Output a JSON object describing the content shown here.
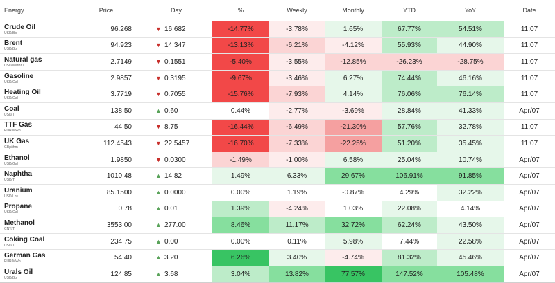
{
  "headers": {
    "name": "Energy",
    "price": "Price",
    "day": "Day",
    "pct": "%",
    "weekly": "Weekly",
    "monthly": "Monthly",
    "ytd": "YTD",
    "yoy": "YoY",
    "date": "Date"
  },
  "colors": {
    "neg_strong": "#f24848",
    "neg_med": "#f5a0a0",
    "neg_light": "#fbd4d4",
    "pos_strong": "#38c463",
    "pos_med": "#86df9e",
    "pos_light": "#bdecc9",
    "up": "#5aa35a",
    "down": "#c8302c"
  },
  "rows": [
    {
      "name": "Crude Oil",
      "unit": "USD/Bbl",
      "price": "96.268",
      "dir": "down",
      "day": "16.682",
      "pct": "-14.77%",
      "weekly": "-3.78%",
      "monthly": "1.65%",
      "ytd": "67.77%",
      "yoy": "54.51%",
      "date": "11:07",
      "cls": [
        "c-neg-strong",
        "c-neg-faint",
        "c-pos-faint",
        "c-pos-light",
        "c-pos-light"
      ]
    },
    {
      "name": "Brent",
      "unit": "USD/Bbl",
      "price": "94.923",
      "dir": "down",
      "day": "14.347",
      "pct": "-13.13%",
      "weekly": "-6.21%",
      "monthly": "-4.12%",
      "ytd": "55.93%",
      "yoy": "44.90%",
      "date": "11:07",
      "cls": [
        "c-neg-strong",
        "c-neg-light",
        "c-neg-faint",
        "c-pos-light",
        "c-pos-faint"
      ]
    },
    {
      "name": "Natural gas",
      "unit": "USD/MMBtu",
      "price": "2.7149",
      "dir": "down",
      "day": "0.1551",
      "pct": "-5.40%",
      "weekly": "-3.55%",
      "monthly": "-12.85%",
      "ytd": "-26.23%",
      "yoy": "-28.75%",
      "date": "11:07",
      "cls": [
        "c-neg-strong",
        "c-neg-faint",
        "c-neg-light",
        "c-neg-light",
        "c-neg-light"
      ]
    },
    {
      "name": "Gasoline",
      "unit": "USD/Gal",
      "price": "2.9857",
      "dir": "down",
      "day": "0.3195",
      "pct": "-9.67%",
      "weekly": "-3.46%",
      "monthly": "6.27%",
      "ytd": "74.44%",
      "yoy": "46.16%",
      "date": "11:07",
      "cls": [
        "c-neg-strong",
        "c-neg-faint",
        "c-pos-faint",
        "c-pos-light",
        "c-pos-faint"
      ]
    },
    {
      "name": "Heating Oil",
      "unit": "USD/Gal",
      "price": "3.7719",
      "dir": "down",
      "day": "0.7055",
      "pct": "-15.76%",
      "weekly": "-7.93%",
      "monthly": "4.14%",
      "ytd": "76.06%",
      "yoy": "76.14%",
      "date": "11:07",
      "cls": [
        "c-neg-strong",
        "c-neg-light",
        "c-pos-faint",
        "c-pos-light",
        "c-pos-light"
      ]
    },
    {
      "name": "Coal",
      "unit": "USD/T",
      "price": "138.50",
      "dir": "up",
      "day": "0.60",
      "pct": "0.44%",
      "weekly": "-2.77%",
      "monthly": "-3.69%",
      "ytd": "28.84%",
      "yoy": "41.33%",
      "date": "Apr/07",
      "cls": [
        "c-neutral",
        "c-neg-faint",
        "c-neg-faint",
        "c-pos-faint",
        "c-pos-faint"
      ]
    },
    {
      "name": "TTF Gas",
      "unit": "EUR/MWh",
      "price": "44.50",
      "dir": "down",
      "day": "8.75",
      "pct": "-16.44%",
      "weekly": "-6.49%",
      "monthly": "-21.30%",
      "ytd": "57.76%",
      "yoy": "32.78%",
      "date": "11:07",
      "cls": [
        "c-neg-strong",
        "c-neg-light",
        "c-neg-med",
        "c-pos-light",
        "c-pos-faint"
      ]
    },
    {
      "name": "UK Gas",
      "unit": "GBp/thm",
      "price": "112.4543",
      "dir": "down",
      "day": "22.5457",
      "pct": "-16.70%",
      "weekly": "-7.33%",
      "monthly": "-22.25%",
      "ytd": "51.20%",
      "yoy": "35.45%",
      "date": "11:07",
      "cls": [
        "c-neg-strong",
        "c-neg-light",
        "c-neg-med",
        "c-pos-light",
        "c-pos-faint"
      ]
    },
    {
      "name": "Ethanol",
      "unit": "USD/Gal",
      "price": "1.9850",
      "dir": "down",
      "day": "0.0300",
      "pct": "-1.49%",
      "weekly": "-1.00%",
      "monthly": "6.58%",
      "ytd": "25.04%",
      "yoy": "10.74%",
      "date": "Apr/07",
      "cls": [
        "c-neg-light",
        "c-neg-faint",
        "c-pos-faint",
        "c-pos-faint",
        "c-pos-faint"
      ]
    },
    {
      "name": "Naphtha",
      "unit": "USD/T",
      "price": "1010.48",
      "dir": "up",
      "day": "14.82",
      "pct": "1.49%",
      "weekly": "6.33%",
      "monthly": "29.67%",
      "ytd": "106.91%",
      "yoy": "91.85%",
      "date": "Apr/07",
      "cls": [
        "c-pos-faint",
        "c-pos-faint",
        "c-pos-med",
        "c-pos-med",
        "c-pos-med"
      ]
    },
    {
      "name": "Uranium",
      "unit": "USD/Lbs",
      "price": "85.1500",
      "dir": "up",
      "day": "0.0000",
      "pct": "0.00%",
      "weekly": "1.19%",
      "monthly": "-0.87%",
      "ytd": "4.29%",
      "yoy": "32.22%",
      "date": "Apr/07",
      "cls": [
        "c-neutral",
        "c-neutral",
        "c-neutral",
        "c-neutral",
        "c-pos-faint"
      ]
    },
    {
      "name": "Propane",
      "unit": "USD/Gal",
      "price": "0.78",
      "dir": "up",
      "day": "0.01",
      "pct": "1.39%",
      "weekly": "-4.24%",
      "monthly": "1.03%",
      "ytd": "22.08%",
      "yoy": "4.14%",
      "date": "Apr/07",
      "cls": [
        "c-pos-light",
        "c-neg-faint",
        "c-neutral",
        "c-pos-faint",
        "c-neutral"
      ]
    },
    {
      "name": "Methanol",
      "unit": "CNY/T",
      "price": "3553.00",
      "dir": "up",
      "day": "277.00",
      "pct": "8.46%",
      "weekly": "11.17%",
      "monthly": "32.72%",
      "ytd": "62.24%",
      "yoy": "43.50%",
      "date": "Apr/07",
      "cls": [
        "c-pos-med",
        "c-pos-light",
        "c-pos-med",
        "c-pos-light",
        "c-pos-faint"
      ]
    },
    {
      "name": "Coking Coal",
      "unit": "USD/T",
      "price": "234.75",
      "dir": "up",
      "day": "0.00",
      "pct": "0.00%",
      "weekly": "0.11%",
      "monthly": "5.98%",
      "ytd": "7.44%",
      "yoy": "22.58%",
      "date": "Apr/07",
      "cls": [
        "c-neutral",
        "c-neutral",
        "c-pos-faint",
        "c-neutral",
        "c-pos-faint"
      ]
    },
    {
      "name": "German Gas",
      "unit": "EUR/MWh",
      "price": "54.40",
      "dir": "up",
      "day": "3.20",
      "pct": "6.26%",
      "weekly": "3.40%",
      "monthly": "-4.74%",
      "ytd": "81.32%",
      "yoy": "45.46%",
      "date": "Apr/07",
      "cls": [
        "c-pos-strong",
        "c-pos-faint",
        "c-neg-faint",
        "c-pos-light",
        "c-pos-faint"
      ]
    },
    {
      "name": "Urals Oil",
      "unit": "USD/Bbl",
      "price": "124.85",
      "dir": "up",
      "day": "3.68",
      "pct": "3.04%",
      "weekly": "13.82%",
      "monthly": "77.57%",
      "ytd": "147.52%",
      "yoy": "105.48%",
      "date": "Apr/07",
      "cls": [
        "c-pos-light",
        "c-pos-med",
        "c-pos-strong",
        "c-pos-med",
        "c-pos-med"
      ]
    }
  ]
}
